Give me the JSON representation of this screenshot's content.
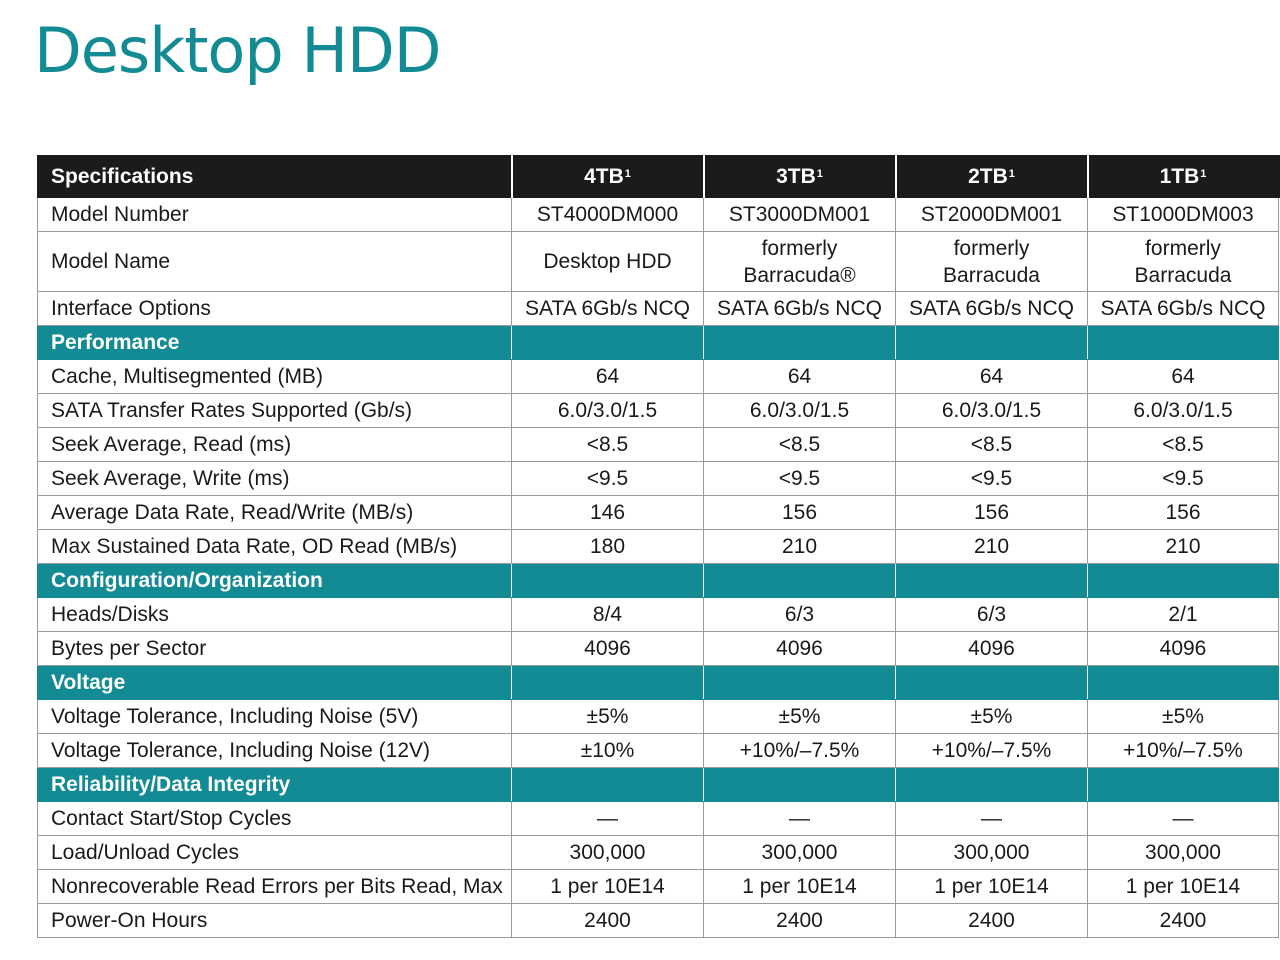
{
  "title": "Desktop HDD",
  "table": {
    "header": {
      "label": "Specifications",
      "columns": [
        "4TB",
        "3TB",
        "2TB",
        "1TB"
      ],
      "footnote": "1"
    },
    "rows": [
      {
        "kind": "row",
        "label": "Model Number",
        "values": [
          "ST4000DM000",
          "ST3000DM001",
          "ST2000DM001",
          "ST1000DM003"
        ]
      },
      {
        "kind": "row",
        "label": "Model Name",
        "tall": true,
        "values": [
          "Desktop HDD",
          "formerly\nBarracuda®",
          "formerly\nBarracuda",
          "formerly\nBarracuda"
        ]
      },
      {
        "kind": "row",
        "label": "Interface Options",
        "values": [
          "SATA 6Gb/s NCQ",
          "SATA 6Gb/s NCQ",
          "SATA 6Gb/s NCQ",
          "SATA 6Gb/s NCQ"
        ]
      },
      {
        "kind": "section",
        "label": "Performance"
      },
      {
        "kind": "row",
        "label": "Cache, Multisegmented (MB)",
        "values": [
          "64",
          "64",
          "64",
          "64"
        ]
      },
      {
        "kind": "row",
        "label": "SATA Transfer Rates Supported (Gb/s)",
        "values": [
          "6.0/3.0/1.5",
          "6.0/3.0/1.5",
          "6.0/3.0/1.5",
          "6.0/3.0/1.5"
        ]
      },
      {
        "kind": "row",
        "label": "Seek Average, Read (ms)",
        "values": [
          "<8.5",
          "<8.5",
          "<8.5",
          "<8.5"
        ]
      },
      {
        "kind": "row",
        "label": "Seek Average, Write (ms)",
        "values": [
          "<9.5",
          "<9.5",
          "<9.5",
          "<9.5"
        ]
      },
      {
        "kind": "row",
        "label": "Average Data Rate, Read/Write (MB/s)",
        "values": [
          "146",
          "156",
          "156",
          "156"
        ]
      },
      {
        "kind": "row",
        "label": "Max Sustained Data Rate, OD Read (MB/s)",
        "values": [
          "180",
          "210",
          "210",
          "210"
        ]
      },
      {
        "kind": "section",
        "label": "Configuration/Organization"
      },
      {
        "kind": "row",
        "label": "Heads/Disks",
        "values": [
          "8/4",
          "6/3",
          "6/3",
          "2/1"
        ]
      },
      {
        "kind": "row",
        "label": "Bytes per Sector",
        "values": [
          "4096",
          "4096",
          "4096",
          "4096"
        ]
      },
      {
        "kind": "section",
        "label": "Voltage"
      },
      {
        "kind": "row",
        "label": "Voltage Tolerance, Including Noise (5V)",
        "values": [
          "±5%",
          "±5%",
          "±5%",
          "±5%"
        ]
      },
      {
        "kind": "row",
        "label": "Voltage Tolerance, Including Noise (12V)",
        "values": [
          "±10%",
          "+10%/–7.5%",
          "+10%/–7.5%",
          "+10%/–7.5%"
        ]
      },
      {
        "kind": "section",
        "label": "Reliability/Data Integrity"
      },
      {
        "kind": "row",
        "label": "Contact Start/Stop Cycles",
        "values": [
          "—",
          "—",
          "—",
          "—"
        ]
      },
      {
        "kind": "row",
        "label": "Load/Unload Cycles",
        "values": [
          "300,000",
          "300,000",
          "300,000",
          "300,000"
        ]
      },
      {
        "kind": "row",
        "label": "Nonrecoverable Read Errors per Bits Read, Max",
        "values": [
          "1 per 10E14",
          "1 per 10E14",
          "1 per 10E14",
          "1 per 10E14"
        ]
      },
      {
        "kind": "row",
        "label": "Power-On Hours",
        "values": [
          "2400",
          "2400",
          "2400",
          "2400"
        ]
      }
    ]
  }
}
